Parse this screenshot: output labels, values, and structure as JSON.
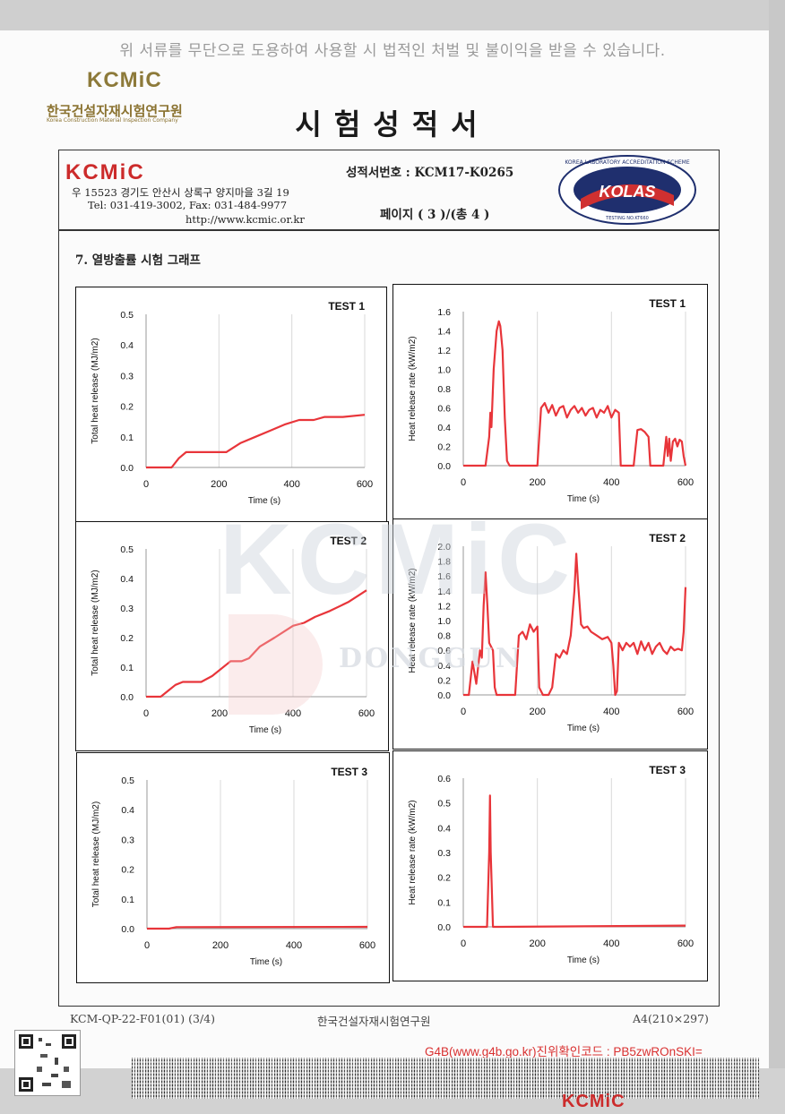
{
  "warning": "위 서류를 무단으로 도용하여 사용할 시 법적인 처벌 및 불이익을 받을 수 있습니다.",
  "logo": {
    "mark": "KCMiC",
    "name_kr": "한국건설자재시험연구원",
    "name_en": "Korea Construction Material Inspection Company"
  },
  "title": "시험성적서",
  "header": {
    "brand": "KCMiC",
    "address": "우 15523   경기도 안산시 상록구 양지마을 3길 19",
    "tel": "Tel: 031-419-3002, Fax: 031-484-9977",
    "url": "http://www.kcmic.or.kr",
    "cert_no": "성적서번호 : KCM17-K0265",
    "page": "페이지 ( 3 )/(총 4 )",
    "kolas": {
      "ring": "KOREA LABORATORY ACCREDITATION SCHEME",
      "label": "KOLAS",
      "testing_no": "TESTING NO.KT660"
    }
  },
  "section_title": "7. 열방출률 시험 그래프",
  "watermark": {
    "main": "KCMiC",
    "sub": "DONGGUN"
  },
  "colors": {
    "series": "#e8353a",
    "grid": "#d9d9d9"
  },
  "chart_data": [
    {
      "type": "line",
      "title": "TEST 1",
      "xlabel": "Time (s)",
      "ylabel": "Total heat release (MJ/m2)",
      "xlim": [
        0,
        600
      ],
      "ylim": [
        0,
        0.5
      ],
      "xticks": [
        0,
        200,
        400,
        600
      ],
      "yticks": [
        "0.0",
        "0.1",
        "0.2",
        "0.3",
        "0.4",
        "0.5"
      ],
      "grid": "vertical",
      "x": [
        0,
        40,
        70,
        90,
        110,
        130,
        220,
        260,
        300,
        340,
        380,
        420,
        460,
        490,
        540,
        600
      ],
      "y": [
        0.0,
        0.0,
        0.0,
        0.03,
        0.05,
        0.05,
        0.05,
        0.08,
        0.1,
        0.12,
        0.14,
        0.155,
        0.155,
        0.165,
        0.165,
        0.172
      ]
    },
    {
      "type": "line",
      "title": "TEST 1",
      "xlabel": "Time (s)",
      "ylabel": "Heat release rate (kW/m2)",
      "xlim": [
        0,
        600
      ],
      "ylim": [
        0,
        1.6
      ],
      "xticks": [
        0,
        200,
        400,
        600
      ],
      "yticks": [
        "0.0",
        "0.2",
        "0.4",
        "0.6",
        "0.8",
        "1.0",
        "1.2",
        "1.4",
        "1.6"
      ],
      "grid": "vertical",
      "x": [
        0,
        60,
        70,
        73,
        76,
        82,
        90,
        96,
        100,
        106,
        112,
        118,
        125,
        130,
        200,
        210,
        220,
        230,
        240,
        250,
        260,
        270,
        280,
        290,
        300,
        310,
        320,
        330,
        340,
        350,
        360,
        370,
        380,
        390,
        400,
        410,
        420,
        425,
        430,
        460,
        470,
        480,
        490,
        500,
        505,
        510,
        540,
        548,
        552,
        556,
        560,
        566,
        572,
        578,
        584,
        590,
        595,
        600
      ],
      "y": [
        0.0,
        0.0,
        0.3,
        0.55,
        0.4,
        1.0,
        1.4,
        1.5,
        1.45,
        1.2,
        0.5,
        0.05,
        0.0,
        0.0,
        0.0,
        0.6,
        0.65,
        0.55,
        0.63,
        0.52,
        0.6,
        0.62,
        0.5,
        0.58,
        0.62,
        0.55,
        0.6,
        0.52,
        0.58,
        0.6,
        0.5,
        0.58,
        0.55,
        0.62,
        0.5,
        0.58,
        0.55,
        0.0,
        0.0,
        0.0,
        0.37,
        0.38,
        0.35,
        0.3,
        0.0,
        0.0,
        0.0,
        0.3,
        0.1,
        0.28,
        0.05,
        0.25,
        0.28,
        0.2,
        0.27,
        0.25,
        0.1,
        0.0
      ]
    },
    {
      "type": "line",
      "title": "TEST 2",
      "xlabel": "Time (s)",
      "ylabel": "Total heat release (MJ/m2)",
      "xlim": [
        0,
        600
      ],
      "ylim": [
        0,
        0.5
      ],
      "xticks": [
        0,
        200,
        400,
        600
      ],
      "yticks": [
        "0.0",
        "0.1",
        "0.2",
        "0.3",
        "0.4",
        "0.5"
      ],
      "grid": "vertical",
      "x": [
        0,
        40,
        60,
        80,
        100,
        150,
        180,
        230,
        260,
        280,
        310,
        350,
        400,
        430,
        460,
        500,
        550,
        600
      ],
      "y": [
        0.0,
        0.0,
        0.02,
        0.04,
        0.05,
        0.05,
        0.07,
        0.12,
        0.12,
        0.13,
        0.17,
        0.2,
        0.24,
        0.25,
        0.27,
        0.29,
        0.32,
        0.36
      ]
    },
    {
      "type": "line",
      "title": "TEST 2",
      "xlabel": "Time (s)",
      "ylabel": "Heat release rate (kW/m2)",
      "xlim": [
        0,
        600
      ],
      "ylim": [
        0,
        2.0
      ],
      "xticks": [
        0,
        200,
        400,
        600
      ],
      "yticks": [
        "0.0",
        "0.2",
        "0.4",
        "0.6",
        "0.8",
        "1.0",
        "1.2",
        "1.4",
        "1.6",
        "1.8",
        "2.0"
      ],
      "grid": "vertical",
      "x": [
        0,
        15,
        25,
        35,
        45,
        50,
        55,
        60,
        65,
        70,
        80,
        85,
        90,
        100,
        140,
        150,
        160,
        170,
        180,
        190,
        200,
        205,
        215,
        230,
        240,
        250,
        260,
        270,
        280,
        290,
        300,
        305,
        310,
        318,
        325,
        335,
        345,
        360,
        375,
        390,
        400,
        405,
        410,
        415,
        420,
        430,
        440,
        450,
        460,
        470,
        480,
        490,
        500,
        510,
        520,
        530,
        540,
        550,
        560,
        570,
        580,
        590,
        595,
        600
      ],
      "y": [
        0.0,
        0.0,
        0.45,
        0.15,
        0.6,
        0.5,
        1.2,
        1.65,
        1.2,
        0.7,
        0.6,
        0.1,
        0.0,
        0.0,
        0.0,
        0.8,
        0.85,
        0.75,
        0.95,
        0.85,
        0.92,
        0.1,
        0.0,
        0.0,
        0.1,
        0.55,
        0.5,
        0.6,
        0.55,
        0.8,
        1.4,
        1.9,
        1.5,
        0.95,
        0.9,
        0.92,
        0.85,
        0.8,
        0.75,
        0.78,
        0.7,
        0.4,
        0.0,
        0.05,
        0.7,
        0.6,
        0.7,
        0.65,
        0.7,
        0.55,
        0.72,
        0.6,
        0.7,
        0.55,
        0.65,
        0.7,
        0.6,
        0.55,
        0.65,
        0.6,
        0.62,
        0.6,
        0.85,
        1.45
      ]
    },
    {
      "type": "line",
      "title": "TEST 3",
      "xlabel": "Time (s)",
      "ylabel": "Total heat release (MJ/m2)",
      "xlim": [
        0,
        600
      ],
      "ylim": [
        0,
        0.5
      ],
      "xticks": [
        0,
        200,
        400,
        600
      ],
      "yticks": [
        "0.0",
        "0.1",
        "0.2",
        "0.3",
        "0.4",
        "0.5"
      ],
      "grid": "vertical",
      "x": [
        0,
        60,
        80,
        600
      ],
      "y": [
        0.0,
        0.0,
        0.005,
        0.006
      ]
    },
    {
      "type": "line",
      "title": "TEST 3",
      "xlabel": "Time (s)",
      "ylabel": "Heat release rate (kW/m2)",
      "xlim": [
        0,
        600
      ],
      "ylim": [
        0,
        0.6
      ],
      "xticks": [
        0,
        200,
        400,
        600
      ],
      "yticks": [
        "0.0",
        "0.1",
        "0.2",
        "0.3",
        "0.4",
        "0.5",
        "0.6"
      ],
      "grid": "vertical",
      "x": [
        0,
        64,
        70,
        72,
        74,
        80,
        100,
        600
      ],
      "y": [
        0.0,
        0.0,
        0.3,
        0.53,
        0.3,
        0.0,
        0.0,
        0.005
      ]
    }
  ],
  "footer": {
    "form": "KCM-QP-22-F01(01) (3/4)",
    "institute": "한국건설자재시험연구원",
    "paper": "A4(210×297)",
    "g4b": "G4B(www.g4b.go.kr)진위확인코드 : PB5zwROnSKI=",
    "bottom_brand": "KCMiC"
  }
}
